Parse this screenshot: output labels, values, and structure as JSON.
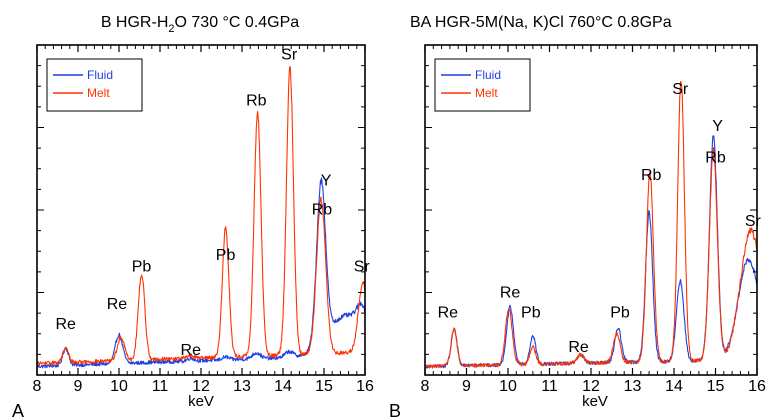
{
  "chart_data": [
    {
      "type": "line",
      "panel_label": "A",
      "title_parts": [
        "B HGR-H",
        "2",
        "O 730 °C 0.4GPa"
      ],
      "xlabel": "keV",
      "ylabel": "",
      "xlim": [
        8,
        16
      ],
      "xticks": [
        "8",
        "9",
        "10",
        "11",
        "12",
        "13",
        "14",
        "15",
        "16"
      ],
      "y_tick_labels_shown": false,
      "legend": {
        "placement": "top-left",
        "entries": [
          "Fluid",
          "Melt"
        ]
      },
      "series": [
        {
          "name": "Fluid",
          "color": "#1f3fe0",
          "baseline": 0.03,
          "slope": 0.005,
          "peaks": [
            [
              8.7,
              0.06,
              0.07
            ],
            [
              10.0,
              0.1,
              0.09
            ],
            [
              11.75,
              0.01,
              0.08
            ],
            [
              12.6,
              0.01,
              0.08
            ],
            [
              13.35,
              0.02,
              0.1
            ],
            [
              14.15,
              0.02,
              0.1
            ],
            [
              14.93,
              0.56,
              0.11
            ],
            [
              15.55,
              0.14,
              0.45
            ],
            [
              15.93,
              0.08,
              0.12
            ]
          ]
        },
        {
          "name": "Melt",
          "color": "#ff3300",
          "baseline": 0.04,
          "slope": 0.005,
          "peaks": [
            [
              8.7,
              0.05,
              0.07
            ],
            [
              10.05,
              0.08,
              0.09
            ],
            [
              10.55,
              0.3,
              0.08
            ],
            [
              11.75,
              0.01,
              0.08
            ],
            [
              12.6,
              0.45,
              0.08
            ],
            [
              13.38,
              0.84,
              0.085
            ],
            [
              14.17,
              1.0,
              0.085
            ],
            [
              14.93,
              0.54,
              0.11
            ],
            [
              15.95,
              0.24,
              0.11
            ]
          ]
        }
      ],
      "peak_labels": [
        {
          "text": "Re",
          "x": 8.7,
          "y": 0.16
        },
        {
          "text": "Re",
          "x": 9.95,
          "y": 0.23
        },
        {
          "text": "Pb",
          "x": 10.55,
          "y": 0.36
        },
        {
          "text": "Re",
          "x": 11.75,
          "y": 0.07
        },
        {
          "text": "Pb",
          "x": 12.6,
          "y": 0.4
        },
        {
          "text": "Rb",
          "x": 13.35,
          "y": 0.94
        },
        {
          "text": "Sr",
          "x": 14.15,
          "y": 1.1
        },
        {
          "text": "Y",
          "x": 15.05,
          "y": 0.66
        },
        {
          "text": "Rb",
          "x": 14.95,
          "y": 0.56
        },
        {
          "text": "Sr",
          "x": 15.92,
          "y": 0.36
        }
      ]
    },
    {
      "type": "line",
      "panel_label": "B",
      "title_parts": [
        "BA  HGR-5M(Na, K)Cl 760°C 0.8GPa",
        "",
        ""
      ],
      "xlabel": "keV",
      "ylabel": "",
      "xlim": [
        8,
        16
      ],
      "xticks": [
        "8",
        "9",
        "10",
        "11",
        "12",
        "13",
        "14",
        "15",
        "16"
      ],
      "y_tick_labels_shown": false,
      "legend": {
        "placement": "top-left",
        "entries": [
          "Fluid",
          "Melt"
        ]
      },
      "series": [
        {
          "name": "Fluid",
          "color": "#1f3fe0",
          "baseline": 0.03,
          "slope": 0.003,
          "peaks": [
            [
              8.7,
              0.13,
              0.07
            ],
            [
              10.05,
              0.2,
              0.08
            ],
            [
              10.6,
              0.1,
              0.07
            ],
            [
              11.75,
              0.03,
              0.08
            ],
            [
              12.65,
              0.12,
              0.08
            ],
            [
              13.4,
              0.52,
              0.085
            ],
            [
              14.15,
              0.28,
              0.09
            ],
            [
              14.95,
              0.78,
              0.095
            ],
            [
              15.8,
              0.35,
              0.25
            ]
          ]
        },
        {
          "name": "Melt",
          "color": "#ff3300",
          "baseline": 0.03,
          "slope": 0.003,
          "peaks": [
            [
              8.7,
              0.13,
              0.07
            ],
            [
              10.02,
              0.2,
              0.08
            ],
            [
              10.6,
              0.06,
              0.07
            ],
            [
              11.75,
              0.03,
              0.08
            ],
            [
              12.62,
              0.1,
              0.08
            ],
            [
              13.42,
              0.66,
              0.085
            ],
            [
              14.17,
              0.98,
              0.08
            ],
            [
              14.95,
              0.73,
              0.095
            ],
            [
              15.85,
              0.45,
              0.25
            ]
          ]
        }
      ],
      "peak_labels": [
        {
          "text": "Re",
          "x": 8.55,
          "y": 0.2
        },
        {
          "text": "Re",
          "x": 10.05,
          "y": 0.27
        },
        {
          "text": "Pb",
          "x": 10.55,
          "y": 0.2
        },
        {
          "text": "Re",
          "x": 11.7,
          "y": 0.08
        },
        {
          "text": "Pb",
          "x": 12.7,
          "y": 0.2
        },
        {
          "text": "Rb",
          "x": 13.45,
          "y": 0.68
        },
        {
          "text": "Sr",
          "x": 14.15,
          "y": 0.98
        },
        {
          "text": "Y",
          "x": 15.05,
          "y": 0.85
        },
        {
          "text": "Rb",
          "x": 15.0,
          "y": 0.74
        },
        {
          "text": "Sr",
          "x": 15.9,
          "y": 0.52
        }
      ]
    }
  ]
}
